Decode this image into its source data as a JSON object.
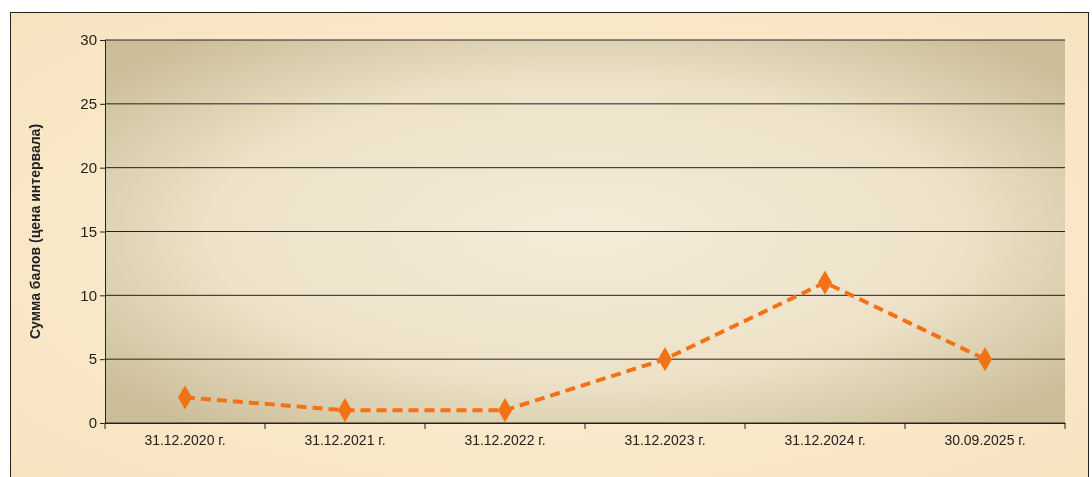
{
  "chart_data": {
    "type": "line",
    "ylabel": "Сумма балов (цена интервала)",
    "categories": [
      "31.12.2020 г.",
      "31.12.2021 г.",
      "31.12.2022 г.",
      "31.12.2023 г.",
      "31.12.2024 г.",
      "30.09.2025 г."
    ],
    "series": [
      {
        "color": "#f47216",
        "values": [
          2,
          1,
          1,
          5,
          11,
          5
        ]
      }
    ],
    "ylim": [
      0,
      30
    ],
    "yticks": [
      0,
      5,
      10,
      15,
      20,
      25,
      30
    ],
    "grid": "y",
    "marker": "diamond",
    "line_style": "dashed"
  }
}
